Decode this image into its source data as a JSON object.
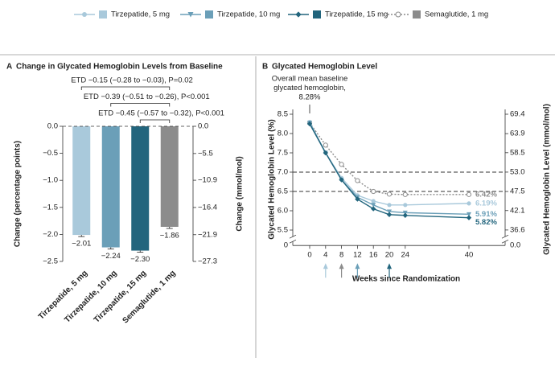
{
  "chart_data": [
    {
      "type": "bar",
      "panel": "A",
      "title": "Change in Glycated Hemoglobin Levels from Baseline",
      "categories": [
        "Tirzepatide, 5 mg",
        "Tirzepatide, 10 mg",
        "Tirzepatide, 15 mg",
        "Semaglutide, 1 mg"
      ],
      "values": [
        -2.01,
        -2.24,
        -2.3,
        -1.86
      ],
      "value_labels": [
        "−2.01",
        "−2.24",
        "−2.30",
        "−1.86"
      ],
      "errors": [
        0.03,
        0.03,
        0.03,
        0.03
      ],
      "colors": [
        "#a9c9db",
        "#6b9fb8",
        "#22657d",
        "#8c8c8c"
      ],
      "ylabel": "Change (percentage points)",
      "y2label": "Change (mmol/mol)",
      "ylim": [
        -2.5,
        0
      ],
      "yticks": [
        {
          "value": 0,
          "label": "0.0"
        },
        {
          "value": -0.5,
          "label": "−0.5"
        },
        {
          "value": -1,
          "label": "−1.0"
        },
        {
          "value": -1.5,
          "label": "−1.5"
        },
        {
          "value": -2,
          "label": "−2.0"
        },
        {
          "value": -2.5,
          "label": "−2.5"
        }
      ],
      "y2lim": [
        -27.3,
        0
      ],
      "y2ticks": [
        {
          "value": 0,
          "label": "0.0"
        },
        {
          "value": -5.5,
          "label": "−5.5"
        },
        {
          "value": -10.9,
          "label": "−10.9"
        },
        {
          "value": -16.4,
          "label": "−16.4"
        },
        {
          "value": -21.9,
          "label": "−21.9"
        },
        {
          "value": -27.3,
          "label": "−27.3"
        }
      ],
      "brackets": [
        {
          "label": "ETD −0.15 (−0.28 to −0.03), P=0.02",
          "between": [
            "Tirzepatide, 5 mg",
            "Semaglutide, 1 mg"
          ]
        },
        {
          "label": "ETD −0.39 (−0.51 to −0.26), P<0.001",
          "between": [
            "Tirzepatide, 10 mg",
            "Semaglutide, 1 mg"
          ]
        },
        {
          "label": "ETD −0.45 (−0.57 to −0.32), P<0.001",
          "between": [
            "Tirzepatide, 15 mg",
            "Semaglutide, 1 mg"
          ]
        }
      ]
    },
    {
      "type": "line",
      "panel": "B",
      "title": "Glycated Hemoglobin Level",
      "annotation": [
        "Overall mean baseline",
        "glycated hemoglobin,",
        "8.28%"
      ],
      "x": [
        0,
        4,
        8,
        12,
        16,
        20,
        24,
        40
      ],
      "xticks": [
        0,
        4,
        8,
        12,
        16,
        20,
        24,
        40
      ],
      "xlim": [
        -4.2,
        49
      ],
      "xlabel": "Weeks since Randomization",
      "ylabel": "Glycated Hemoglobin Level (%)",
      "y2label": "Glycated Hemoglobin Level (mmol/mol)",
      "ylim": [
        5.1,
        8.5
      ],
      "yticks": [
        {
          "value": 5.5,
          "label": "5.5"
        },
        {
          "value": 6,
          "label": "6.0"
        },
        6.5,
        {
          "value": 7,
          "label": "7.0"
        },
        7.5,
        {
          "value": 8,
          "label": "8.0"
        },
        8.5
      ],
      "y_floor_tick": 0,
      "y2lim": [
        32.2,
        69.4
      ],
      "y2ticks": [
        36.6,
        42.1,
        47.5,
        {
          "value": 53,
          "label": "53.0"
        },
        58.5,
        63.9,
        69.4
      ],
      "y2_floor_tick": {
        "value": 0,
        "label": "0.0"
      },
      "reference_lines": [
        7,
        6.5
      ],
      "escalation_weeks": [
        4,
        8,
        12,
        20
      ],
      "escalation_colors": [
        "#a9c9db",
        "#8c8c8c",
        "#6b9fb8",
        "#22657d"
      ],
      "series": [
        {
          "name": "Tirzepatide, 5 mg",
          "color": "#a9c9db",
          "marker": "circle",
          "values": [
            8.3,
            7.5,
            6.85,
            6.4,
            6.25,
            6.15,
            6.15,
            6.19
          ],
          "end_label": "6.19%"
        },
        {
          "name": "Tirzepatide, 10 mg",
          "color": "#6b9fb8",
          "marker": "triangle",
          "values": [
            8.28,
            7.5,
            6.8,
            6.35,
            6.15,
            5.98,
            5.95,
            5.91
          ],
          "end_label": "5.91%"
        },
        {
          "name": "Tirzepatide, 15 mg",
          "color": "#22657d",
          "marker": "diamond",
          "values": [
            8.25,
            7.5,
            6.8,
            6.3,
            6.05,
            5.9,
            5.88,
            5.82
          ],
          "end_label": "5.82%"
        },
        {
          "name": "Semaglutide, 1 mg",
          "color": "#8c8c8c",
          "marker": "open-circle",
          "dashed": true,
          "values": [
            8.28,
            7.7,
            7.2,
            6.78,
            6.5,
            6.43,
            6.42,
            6.42
          ],
          "end_label": "6.42%"
        }
      ]
    }
  ]
}
